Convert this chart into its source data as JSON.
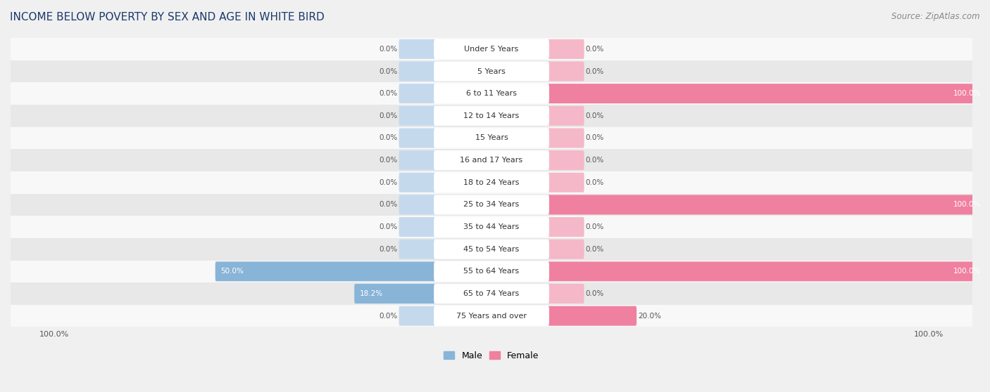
{
  "title": "INCOME BELOW POVERTY BY SEX AND AGE IN WHITE BIRD",
  "source": "Source: ZipAtlas.com",
  "categories": [
    "Under 5 Years",
    "5 Years",
    "6 to 11 Years",
    "12 to 14 Years",
    "15 Years",
    "16 and 17 Years",
    "18 to 24 Years",
    "25 to 34 Years",
    "35 to 44 Years",
    "45 to 54 Years",
    "55 to 64 Years",
    "65 to 74 Years",
    "75 Years and over"
  ],
  "male": [
    0.0,
    0.0,
    0.0,
    0.0,
    0.0,
    0.0,
    0.0,
    0.0,
    0.0,
    0.0,
    50.0,
    18.2,
    0.0
  ],
  "female": [
    0.0,
    0.0,
    100.0,
    0.0,
    0.0,
    0.0,
    0.0,
    100.0,
    0.0,
    0.0,
    100.0,
    0.0,
    20.0
  ],
  "male_color": "#88b4d8",
  "female_color": "#f080a0",
  "male_color_light": "#c5d9ed",
  "female_color_light": "#f5b8c8",
  "male_label": "Male",
  "female_label": "Female",
  "title_fontsize": 11,
  "source_fontsize": 8.5,
  "label_fontsize": 8,
  "tick_fontsize": 8,
  "bar_height": 0.52,
  "background_color": "#f0f0f0",
  "row_bg_light": "#f8f8f8",
  "row_bg_dark": "#e8e8e8",
  "max_value": 100.0,
  "min_bar_display": 8.0,
  "title_color": "#1a3a6b"
}
